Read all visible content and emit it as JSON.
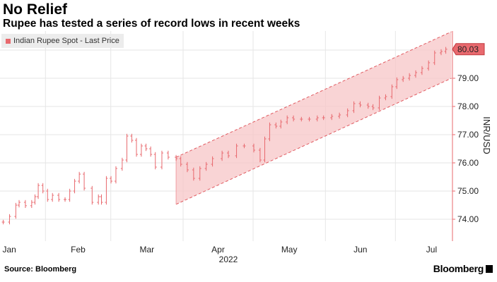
{
  "chart_data": {
    "type": "line",
    "title": "No Relief",
    "subtitle": "Rupee has tested a series of record lows in recent weeks",
    "legend": [
      "Indian Rupee Spot - Last Price"
    ],
    "legend_position": "top-left",
    "xlabel": "2022",
    "ylabel": "INR/USD",
    "ylim": [
      73.4,
      80.7
    ],
    "xlim": [
      11,
      205
    ],
    "x_unit": "day of year 2022",
    "yticks": [
      "74.00",
      "75.00",
      "76.00",
      "77.00",
      "78.00",
      "79.00"
    ],
    "ytick_values": [
      74,
      75,
      76,
      77,
      78,
      79
    ],
    "xticks": [
      "Jan",
      "Feb",
      "Mar",
      "Apr",
      "May",
      "Jun",
      "Jul"
    ],
    "xtick_values": [
      15.5,
      45,
      74.5,
      105,
      135.5,
      166,
      196.5
    ],
    "month_boundaries": [
      31,
      59,
      90,
      120,
      151,
      181
    ],
    "last_value_label": "80.03",
    "grid": true,
    "series": [
      {
        "name": "Indian Rupee Spot - Last Price",
        "color": "#e8696e",
        "x": [
          12.9,
          15.6,
          18.3,
          19.7,
          22.4,
          25.1,
          26.5,
          27.9,
          29.9,
          31.9,
          34,
          36.7,
          39.4,
          41.4,
          43.5,
          45.5,
          47.6,
          51,
          53.7,
          55,
          57.1,
          59.1,
          61.2,
          63.9,
          65.9,
          68,
          70,
          72.1,
          74.1,
          76.1,
          78.1,
          80.9,
          83.6,
          87,
          89,
          91.8,
          94.5,
          97.2,
          99.9,
          102.6,
          106.7,
          109.4,
          112.9,
          116.2,
          120.3,
          123,
          125,
          127.1,
          129.8,
          131.9,
          134.6,
          137.3,
          140.7,
          144.1,
          147.5,
          150.2,
          153.7,
          157,
          160.5,
          163.2,
          165.9,
          169.3,
          171.4,
          174.1,
          176.8,
          179.5,
          181.6,
          184.3,
          187,
          189.7,
          192.4,
          195.2,
          197.8,
          200.6,
          202.6
        ],
        "y": [
          73.9,
          74.1,
          74.5,
          74.6,
          74.48,
          74.6,
          74.8,
          75.2,
          75.0,
          74.7,
          74.85,
          74.7,
          74.7,
          75.0,
          75.35,
          75.6,
          75.1,
          74.6,
          74.8,
          74.6,
          75.45,
          75.35,
          75.8,
          76.1,
          76.95,
          76.8,
          76.3,
          76.6,
          76.5,
          76.3,
          75.85,
          76.35,
          76.2,
          76.15,
          75.95,
          75.75,
          75.45,
          75.8,
          75.95,
          76.15,
          76.35,
          76.25,
          76.6,
          76.6,
          76.45,
          76.1,
          76.85,
          77.35,
          77.3,
          77.45,
          77.6,
          77.55,
          77.55,
          77.55,
          77.6,
          77.6,
          77.65,
          77.7,
          77.85,
          78.1,
          78.05,
          78.0,
          77.95,
          78.3,
          78.35,
          78.7,
          78.95,
          79.0,
          79.1,
          79.2,
          79.35,
          79.55,
          79.9,
          79.95,
          80.03
        ]
      }
    ],
    "annotations": [
      {
        "type": "channel",
        "x_start": 87,
        "x_end": 205,
        "upper": [
          76.2,
          80.65
        ],
        "lower": [
          74.53,
          79.0
        ],
        "color": "#f7c5c7"
      }
    ]
  },
  "footer": {
    "source": "Source: Bloomberg",
    "brand": "Bloomberg"
  }
}
